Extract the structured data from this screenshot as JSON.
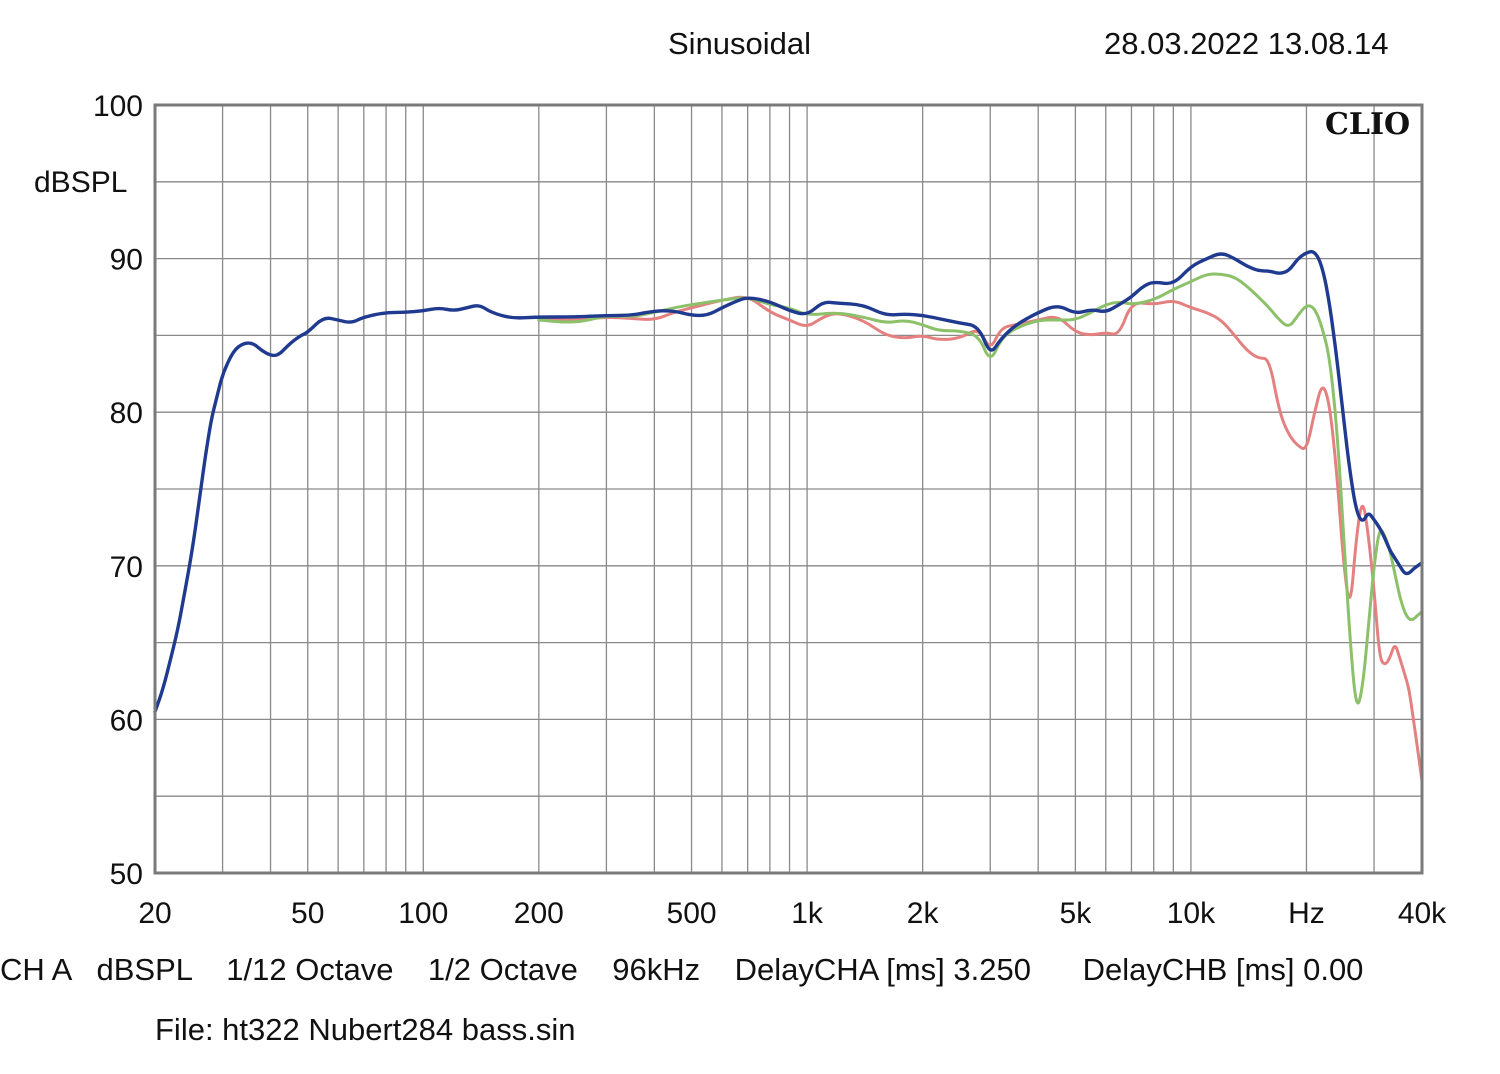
{
  "header": {
    "title": "Sinusoidal",
    "datetime": "28.03.2022 13.08.14"
  },
  "brand": "CLIO",
  "footer": {
    "settings": "CH A   dBSPL    1/12 Octave    1/2 Octave    96kHz    DelayCHA [ms] 3.250      DelayCHB [ms] 0.00",
    "file": "File: ht322 Nubert284 bass.sin"
  },
  "colors": {
    "blue": "#1f3a8f",
    "green": "#8cc16a",
    "red": "#e58080",
    "grid": "#8a8a8a",
    "frame": "#7a7a7a"
  },
  "chart_data": {
    "type": "line",
    "xscale": "log",
    "xlim": [
      20,
      40000
    ],
    "ylim": [
      50,
      100
    ],
    "ylabel": "dBSPL",
    "xticks": [
      {
        "v": 20,
        "label": "20"
      },
      {
        "v": 50,
        "label": "50"
      },
      {
        "v": 100,
        "label": "100"
      },
      {
        "v": 200,
        "label": "200"
      },
      {
        "v": 500,
        "label": "500"
      },
      {
        "v": 1000,
        "label": "1k"
      },
      {
        "v": 2000,
        "label": "2k"
      },
      {
        "v": 5000,
        "label": "5k"
      },
      {
        "v": 10000,
        "label": "10k"
      },
      {
        "v": 20000,
        "label": "Hz"
      },
      {
        "v": 40000,
        "label": "40k"
      }
    ],
    "yticks": [
      {
        "v": 100,
        "label": "100"
      },
      {
        "v": 90,
        "label": "90"
      },
      {
        "v": 80,
        "label": "80"
      },
      {
        "v": 70,
        "label": "70"
      },
      {
        "v": 60,
        "label": "60"
      },
      {
        "v": 50,
        "label": "50"
      }
    ],
    "grid": true,
    "series": [
      {
        "color": "#e58080",
        "x": [
          200,
          250,
          300,
          350,
          400,
          450,
          500,
          600,
          700,
          800,
          900,
          1000,
          1100,
          1200,
          1400,
          1600,
          1800,
          2000,
          2200,
          2500,
          2800,
          3000,
          3200,
          3500,
          4000,
          4500,
          5000,
          5500,
          6000,
          6500,
          7000,
          8000,
          9000,
          10000,
          11000,
          12000,
          13000,
          14000,
          15000,
          16000,
          17000,
          18000,
          19000,
          20000,
          21000,
          22000,
          23000,
          24000,
          25000,
          26000,
          27000,
          28000,
          29000,
          30000,
          31000,
          32000,
          33000,
          34000,
          35000,
          36000,
          37000,
          38000,
          39000,
          40000
        ],
        "y": [
          86.0,
          86.0,
          86.2,
          86.1,
          86.0,
          86.5,
          86.8,
          87.3,
          87.6,
          86.5,
          86.0,
          85.5,
          86.2,
          86.5,
          86.0,
          85.0,
          84.8,
          85.0,
          84.7,
          84.8,
          85.5,
          84.0,
          85.5,
          85.7,
          86.0,
          86.3,
          85.2,
          85.0,
          85.2,
          85.0,
          87.2,
          87.0,
          87.3,
          86.8,
          86.5,
          86.0,
          85.0,
          84.0,
          83.5,
          83.5,
          80.0,
          78.5,
          77.8,
          77.5,
          80.0,
          82.0,
          80.5,
          76.0,
          70.0,
          67.0,
          72.0,
          74.5,
          72.0,
          68.5,
          64.0,
          63.5,
          64.0,
          65.0,
          64.0,
          63.0,
          62.0,
          60.0,
          58.0,
          56.0
        ]
      },
      {
        "color": "#8cc16a",
        "x": [
          200,
          250,
          300,
          350,
          400,
          450,
          500,
          600,
          700,
          800,
          900,
          1000,
          1200,
          1400,
          1600,
          1800,
          2000,
          2200,
          2500,
          2800,
          3000,
          3200,
          3500,
          4000,
          4500,
          5000,
          5500,
          6000,
          6500,
          7000,
          8000,
          9000,
          10000,
          11000,
          12000,
          13000,
          14000,
          15000,
          16000,
          17000,
          18000,
          19000,
          20000,
          21000,
          22000,
          23000,
          24000,
          25000,
          26000,
          27000,
          28000,
          29000,
          30000,
          31000,
          32000,
          33000,
          34000,
          35000,
          36000,
          37000,
          38000,
          39000,
          40000
        ],
        "y": [
          86.0,
          85.8,
          86.3,
          86.2,
          86.5,
          86.8,
          87.0,
          87.3,
          87.5,
          87.0,
          86.8,
          86.3,
          86.5,
          86.2,
          85.8,
          86.0,
          85.7,
          85.3,
          85.3,
          85.0,
          83.2,
          84.8,
          85.5,
          86.0,
          86.0,
          86.0,
          86.5,
          87.0,
          87.2,
          87.0,
          87.3,
          88.0,
          88.5,
          89.0,
          89.0,
          88.8,
          88.2,
          87.5,
          86.8,
          86.0,
          85.5,
          86.3,
          87.0,
          86.8,
          85.5,
          83.5,
          79.0,
          72.0,
          65.0,
          60.5,
          62.0,
          66.0,
          70.0,
          72.5,
          72.0,
          71.0,
          69.5,
          68.0,
          67.0,
          66.5,
          66.5,
          66.8,
          67.0
        ]
      },
      {
        "color": "#1f3a8f",
        "x": [
          20,
          21,
          22,
          23,
          24,
          25,
          26,
          27,
          28,
          29,
          30,
          32,
          34,
          36,
          38,
          40,
          42,
          45,
          48,
          50,
          55,
          60,
          65,
          70,
          80,
          90,
          100,
          110,
          120,
          130,
          140,
          150,
          170,
          200,
          250,
          300,
          350,
          400,
          450,
          500,
          550,
          600,
          650,
          700,
          800,
          900,
          1000,
          1100,
          1200,
          1400,
          1600,
          1800,
          2000,
          2200,
          2500,
          2800,
          3000,
          3200,
          3500,
          4000,
          4500,
          5000,
          5500,
          6000,
          6500,
          7000,
          7500,
          8000,
          9000,
          10000,
          11000,
          12000,
          13000,
          14000,
          15000,
          16000,
          17000,
          18000,
          19000,
          20000,
          21000,
          22000,
          23000,
          24000,
          25000,
          26000,
          27000,
          28000,
          29000,
          30000,
          31000,
          32000,
          33000,
          34000,
          35000,
          36000,
          37000,
          38000,
          39000,
          40000
        ],
        "y": [
          60.5,
          62.0,
          64.0,
          66.0,
          68.5,
          71.0,
          74.0,
          77.0,
          79.5,
          81.0,
          82.5,
          84.0,
          84.5,
          84.5,
          84.0,
          83.7,
          83.7,
          84.5,
          85.0,
          85.2,
          86.2,
          86.0,
          85.8,
          86.2,
          86.5,
          86.5,
          86.6,
          86.8,
          86.6,
          86.8,
          87.0,
          86.5,
          86.1,
          86.2,
          86.2,
          86.3,
          86.3,
          86.6,
          86.6,
          86.3,
          86.3,
          86.8,
          87.2,
          87.5,
          87.2,
          86.6,
          86.3,
          87.2,
          87.1,
          87.0,
          86.3,
          86.4,
          86.3,
          86.1,
          85.8,
          85.6,
          83.7,
          84.8,
          85.7,
          86.5,
          87.0,
          86.4,
          86.7,
          86.5,
          87.0,
          87.5,
          88.2,
          88.5,
          88.3,
          89.5,
          90.0,
          90.4,
          90.0,
          89.5,
          89.2,
          89.2,
          89.0,
          89.2,
          90.0,
          90.4,
          90.5,
          89.5,
          87.0,
          83.5,
          79.5,
          76.0,
          73.5,
          72.8,
          73.5,
          73.0,
          72.5,
          71.8,
          71.0,
          70.5,
          70.0,
          69.5,
          69.5,
          69.8,
          70.0,
          70.2
        ]
      }
    ]
  }
}
